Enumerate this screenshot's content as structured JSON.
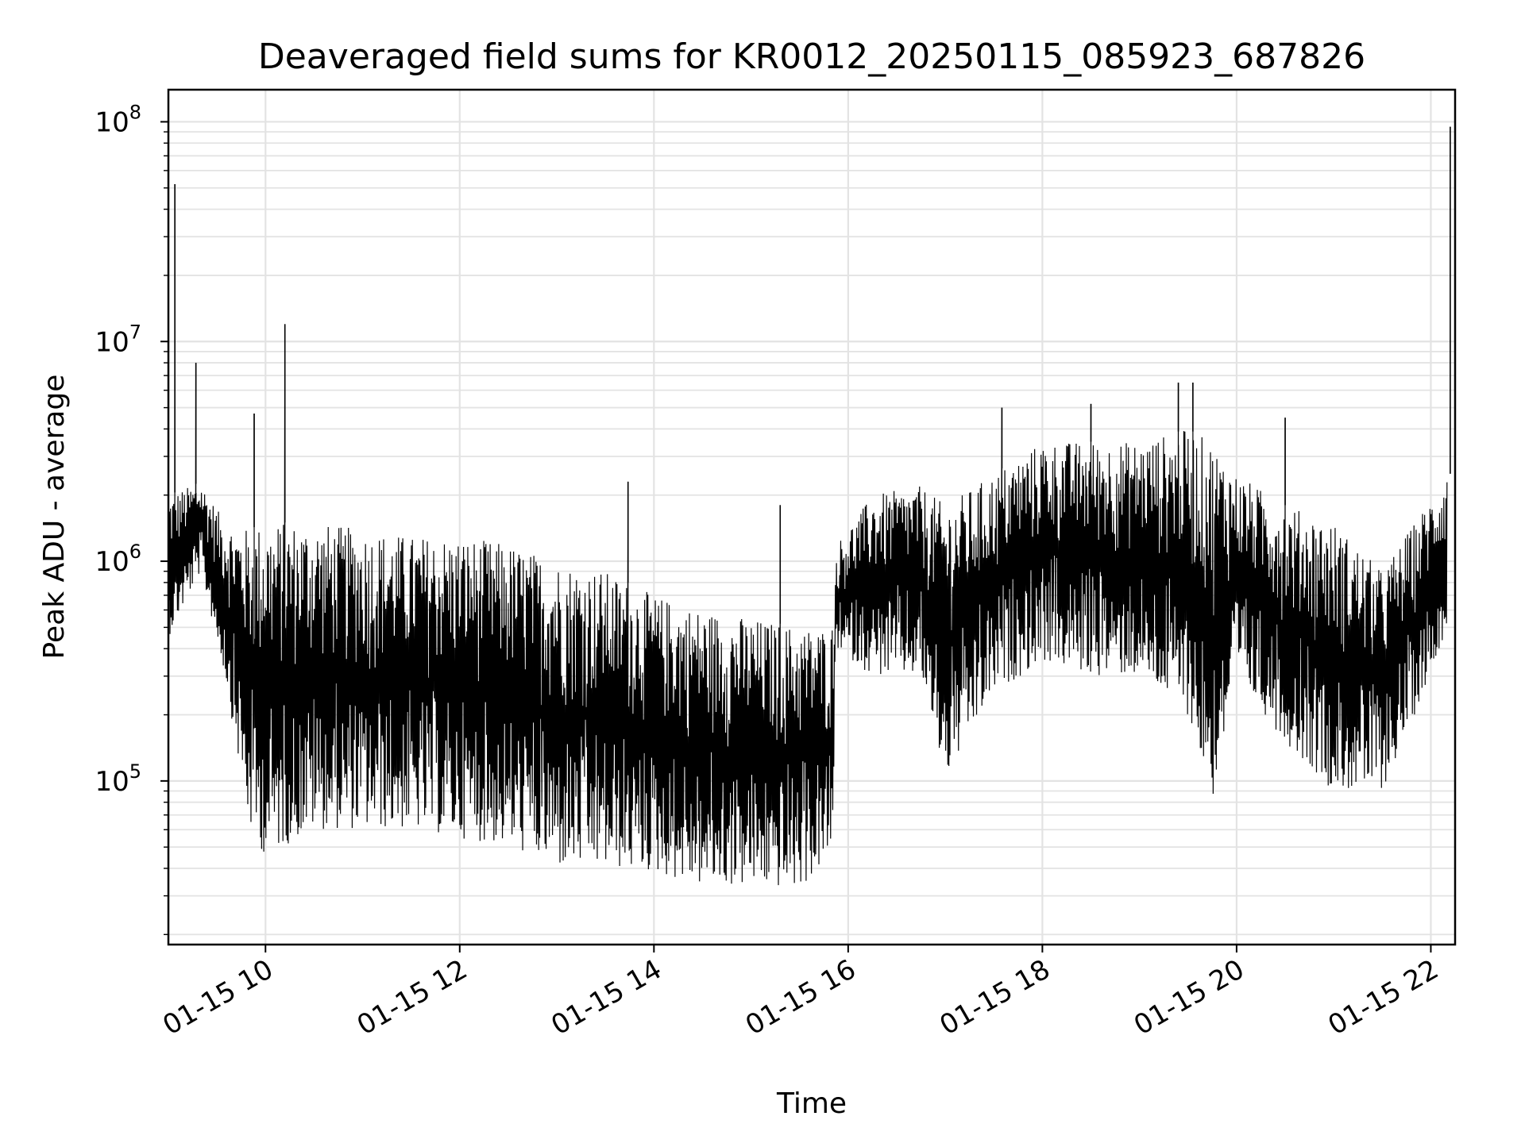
{
  "chart_data": {
    "type": "line",
    "title": "Deaveraged field sums for KR0012_20250115_085923_687826",
    "xlabel": "Time",
    "ylabel": "Peak ADU - average",
    "y_scale": "log",
    "ylim": [
      18000,
      140000000
    ],
    "xlim": [
      "2025-01-15 09:00",
      "2025-01-15 22:15"
    ],
    "grid": true,
    "legend": "none",
    "line_color": "#000000",
    "x_ticks": [
      "01-15 10",
      "01-15 12",
      "01-15 14",
      "01-15 16",
      "01-15 18",
      "01-15 20",
      "01-15 22"
    ],
    "x_tick_times": [
      "2025-01-15 10:00",
      "2025-01-15 12:00",
      "2025-01-15 14:00",
      "2025-01-15 16:00",
      "2025-01-15 18:00",
      "2025-01-15 20:00",
      "2025-01-15 22:00"
    ],
    "y_ticks": [
      {
        "value": 100000,
        "base": "10",
        "exp": "5"
      },
      {
        "value": 1000000,
        "base": "10",
        "exp": "6"
      },
      {
        "value": 10000000,
        "base": "10",
        "exp": "7"
      },
      {
        "value": 100000000,
        "base": "10",
        "exp": "8"
      }
    ],
    "series": [
      {
        "envelope": [
          {
            "t": "2025-01-15 09:00",
            "low": 450000,
            "high": 2000000
          },
          {
            "t": "2025-01-15 09:20",
            "low": 900000,
            "high": 2300000
          },
          {
            "t": "2025-01-15 09:35",
            "low": 300000,
            "high": 1500000
          },
          {
            "t": "2025-01-15 09:50",
            "low": 60000,
            "high": 1400000
          },
          {
            "t": "2025-01-15 10:00",
            "low": 45000,
            "high": 1500000
          },
          {
            "t": "2025-01-15 10:30",
            "low": 60000,
            "high": 1500000
          },
          {
            "t": "2025-01-15 11:00",
            "low": 60000,
            "high": 1400000
          },
          {
            "t": "2025-01-15 11:30",
            "low": 60000,
            "high": 1300000
          },
          {
            "t": "2025-01-15 12:00",
            "low": 55000,
            "high": 1300000
          },
          {
            "t": "2025-01-15 12:30",
            "low": 50000,
            "high": 1200000
          },
          {
            "t": "2025-01-15 13:00",
            "low": 40000,
            "high": 1000000
          },
          {
            "t": "2025-01-15 13:30",
            "low": 40000,
            "high": 900000
          },
          {
            "t": "2025-01-15 14:00",
            "low": 38000,
            "high": 700000
          },
          {
            "t": "2025-01-15 14:30",
            "low": 33000,
            "high": 600000
          },
          {
            "t": "2025-01-15 15:00",
            "low": 33000,
            "high": 550000
          },
          {
            "t": "2025-01-15 15:30",
            "low": 32000,
            "high": 500000
          },
          {
            "t": "2025-01-15 15:50",
            "low": 45000,
            "high": 500000
          },
          {
            "t": "2025-01-15 15:53",
            "low": 400000,
            "high": 1200000
          },
          {
            "t": "2025-01-15 16:15",
            "low": 300000,
            "high": 2000000
          },
          {
            "t": "2025-01-15 16:45",
            "low": 300000,
            "high": 2200000
          },
          {
            "t": "2025-01-15 17:00",
            "low": 100000,
            "high": 1800000
          },
          {
            "t": "2025-01-15 17:30",
            "low": 250000,
            "high": 2500000
          },
          {
            "t": "2025-01-15 18:00",
            "low": 350000,
            "high": 3500000
          },
          {
            "t": "2025-01-15 18:30",
            "low": 300000,
            "high": 3500000
          },
          {
            "t": "2025-01-15 19:00",
            "low": 300000,
            "high": 3500000
          },
          {
            "t": "2025-01-15 19:30",
            "low": 200000,
            "high": 4000000
          },
          {
            "t": "2025-01-15 19:45",
            "low": 80000,
            "high": 3500000
          },
          {
            "t": "2025-01-15 20:00",
            "low": 300000,
            "high": 2500000
          },
          {
            "t": "2025-01-15 20:30",
            "low": 150000,
            "high": 1800000
          },
          {
            "t": "2025-01-15 21:00",
            "low": 90000,
            "high": 1500000
          },
          {
            "t": "2025-01-15 21:30",
            "low": 90000,
            "high": 900000
          },
          {
            "t": "2025-01-15 21:50",
            "low": 200000,
            "high": 1500000
          },
          {
            "t": "2025-01-15 22:10",
            "low": 500000,
            "high": 2500000
          }
        ],
        "spikes": [
          {
            "t": "2025-01-15 09:04",
            "value": 52000000
          },
          {
            "t": "2025-01-15 09:17",
            "value": 8000000
          },
          {
            "t": "2025-01-15 09:53",
            "value": 4700000
          },
          {
            "t": "2025-01-15 10:12",
            "value": 12000000
          },
          {
            "t": "2025-01-15 13:44",
            "value": 2300000
          },
          {
            "t": "2025-01-15 15:18",
            "value": 1800000
          },
          {
            "t": "2025-01-15 17:35",
            "value": 5000000
          },
          {
            "t": "2025-01-15 18:30",
            "value": 5200000
          },
          {
            "t": "2025-01-15 19:24",
            "value": 6500000
          },
          {
            "t": "2025-01-15 19:33",
            "value": 6500000
          },
          {
            "t": "2025-01-15 20:30",
            "value": 4500000
          },
          {
            "t": "2025-01-15 22:12",
            "value": 95000000
          }
        ]
      }
    ]
  }
}
